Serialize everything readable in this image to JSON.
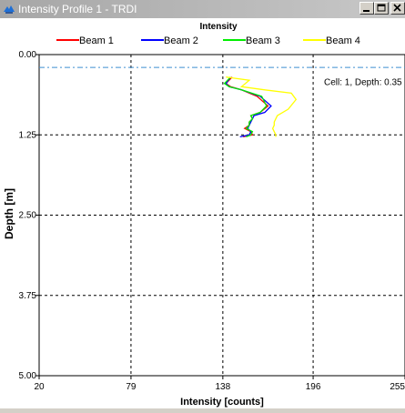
{
  "window": {
    "title": "Intensity Profile 1 - TRDI",
    "app_icon": "teledyne-rdi-icon",
    "buttons": {
      "minimize": "minimize-icon",
      "maximize": "maximize-icon",
      "close": "close-icon"
    }
  },
  "chart_data": {
    "type": "line",
    "title": "Intensity",
    "xlabel": "Intensity [counts]",
    "ylabel": "Depth [m]",
    "xlim": [
      20,
      255
    ],
    "ylim": [
      0,
      5
    ],
    "y_inverted": true,
    "x_ticks": [
      "20",
      "79",
      "138",
      "196",
      "255"
    ],
    "x_tick_values": [
      20,
      79,
      138,
      196,
      255
    ],
    "y_ticks": [
      "0.00",
      "1.25",
      "2.50",
      "3.75",
      "5.00"
    ],
    "y_tick_values": [
      0,
      1.25,
      2.5,
      3.75,
      5
    ],
    "grid": true,
    "legend_position": "top",
    "cell_marker": {
      "depth": 0.35,
      "label": "Cell: 1, Depth: 0.35"
    },
    "series": [
      {
        "name": "Beam 1",
        "color": "#ff0000",
        "x": [
          144,
          140,
          143,
          150,
          160,
          167,
          162,
          156,
          157,
          155,
          155,
          152,
          156,
          157,
          151
        ],
        "y": [
          0.35,
          0.45,
          0.5,
          0.55,
          0.65,
          0.8,
          0.9,
          0.95,
          1.0,
          1.05,
          1.1,
          1.15,
          1.2,
          1.25,
          1.28
        ]
      },
      {
        "name": "Beam 2",
        "color": "#0000ff",
        "x": [
          143,
          140,
          142,
          150,
          162,
          169,
          165,
          158,
          157,
          156,
          155,
          154,
          156,
          155,
          149
        ],
        "y": [
          0.35,
          0.45,
          0.5,
          0.55,
          0.65,
          0.8,
          0.9,
          0.95,
          1.0,
          1.05,
          1.1,
          1.15,
          1.2,
          1.25,
          1.28
        ]
      },
      {
        "name": "Beam 3",
        "color": "#00ee00",
        "x": [
          143,
          139,
          142,
          150,
          163,
          166,
          162,
          156,
          157,
          155,
          155,
          153,
          157,
          156,
          153
        ],
        "y": [
          0.35,
          0.45,
          0.5,
          0.55,
          0.65,
          0.8,
          0.9,
          0.95,
          1.0,
          1.05,
          1.1,
          1.15,
          1.2,
          1.25,
          1.28
        ]
      },
      {
        "name": "Beam 4",
        "color": "#ffff00",
        "x": [
          140,
          155,
          150,
          165,
          182,
          185,
          180,
          173,
          172,
          171,
          171,
          170,
          171,
          172,
          172
        ],
        "y": [
          0.35,
          0.4,
          0.5,
          0.55,
          0.6,
          0.7,
          0.85,
          0.95,
          1.0,
          1.05,
          1.1,
          1.15,
          1.2,
          1.25,
          1.28
        ]
      }
    ]
  }
}
